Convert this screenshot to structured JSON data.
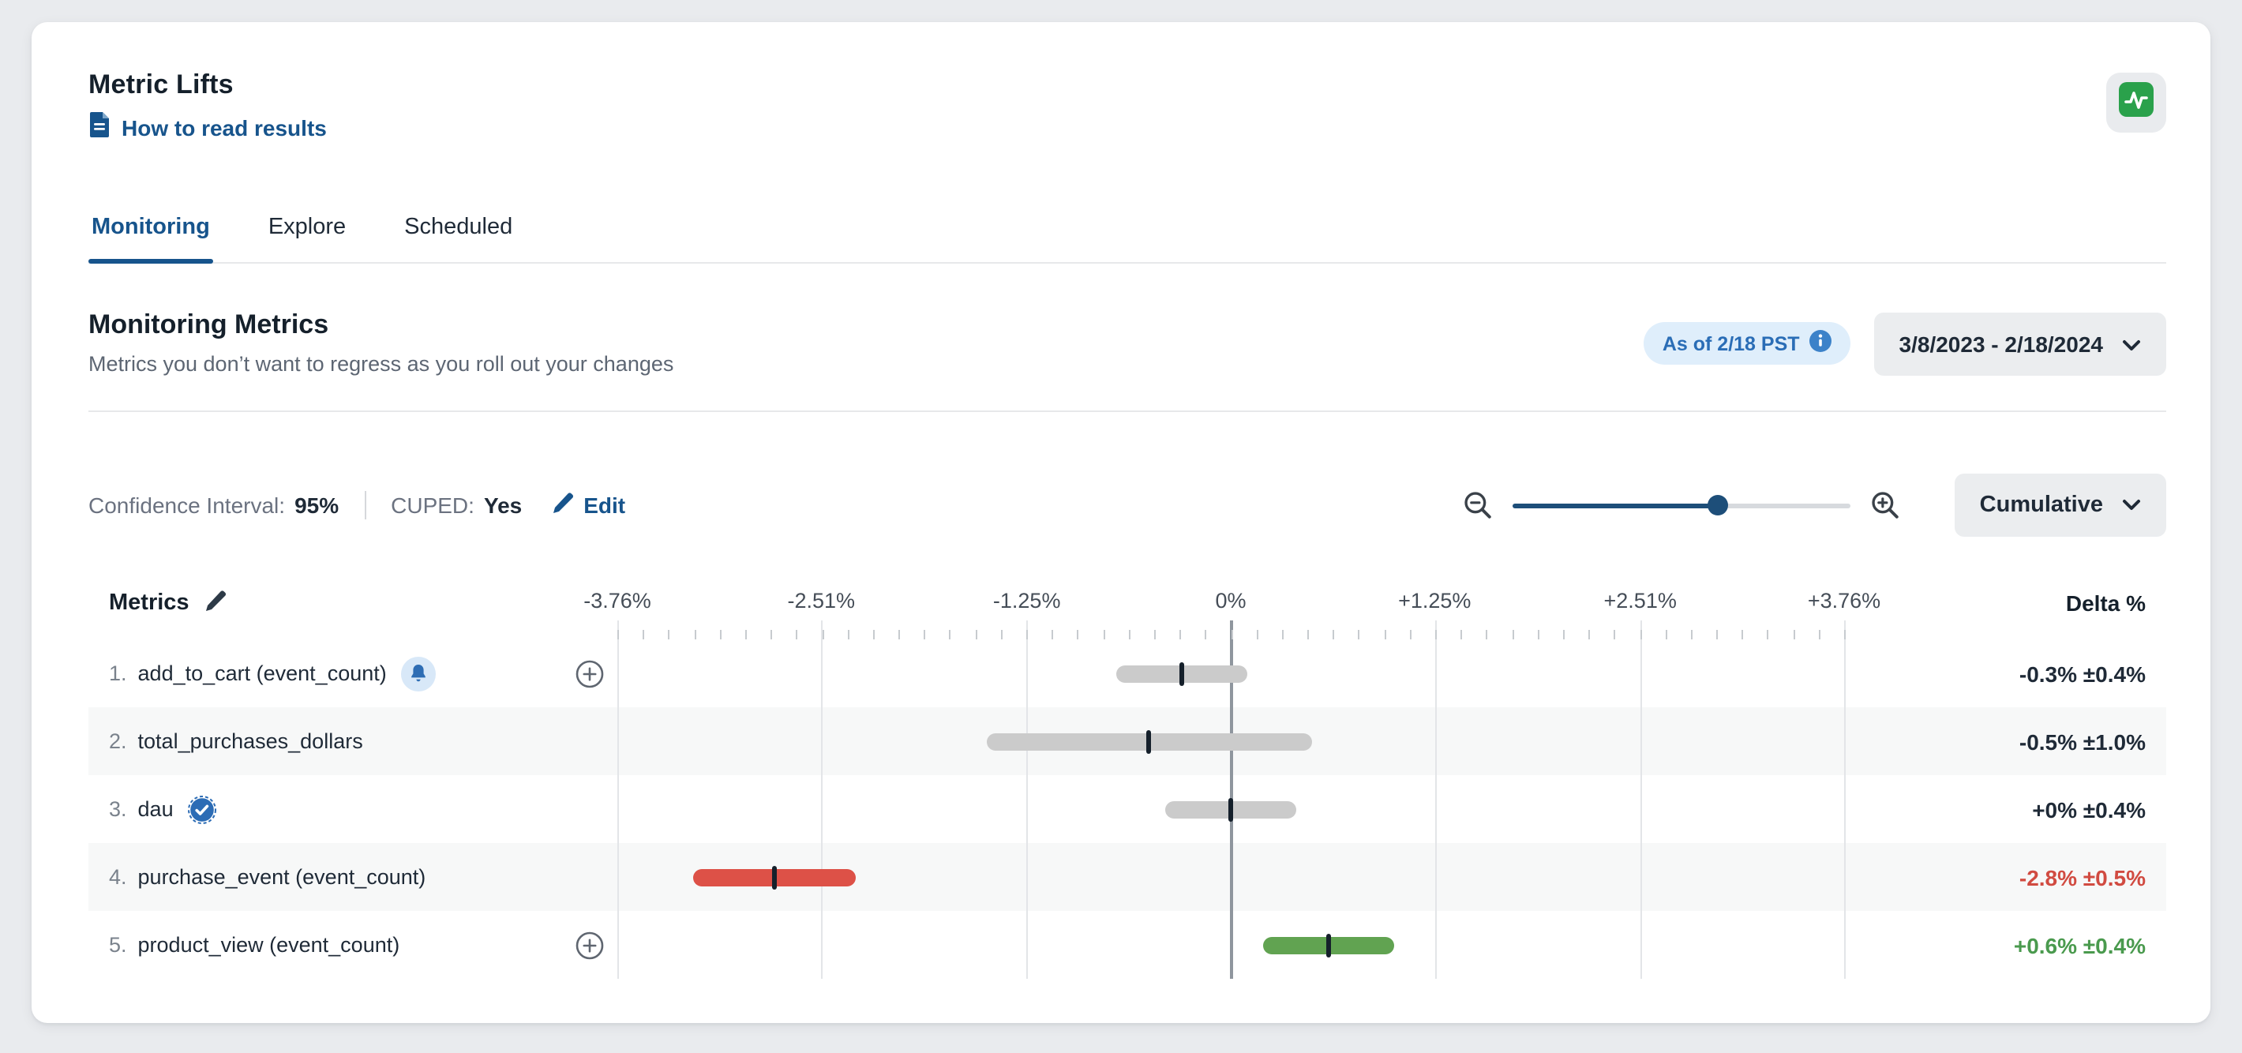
{
  "page": {
    "background": "#e9ebee"
  },
  "header": {
    "title": "Metric Lifts",
    "help_link": "How to read results"
  },
  "tabs": [
    {
      "label": "Monitoring",
      "active": true
    },
    {
      "label": "Explore",
      "active": false
    },
    {
      "label": "Scheduled",
      "active": false
    }
  ],
  "section": {
    "title": "Monitoring Metrics",
    "subtitle": "Metrics you don’t want to regress as you roll out your changes",
    "as_of_badge": "As of 2/18 PST",
    "date_range": "3/8/2023 - 2/18/2024"
  },
  "controls": {
    "confidence_label": "Confidence Interval:",
    "confidence_value": "95%",
    "cuped_label": "CUPED:",
    "cuped_value": "Yes",
    "edit_label": "Edit",
    "view_mode": "Cumulative",
    "zoom_position_pct": 61
  },
  "table": {
    "metrics_header": "Metrics",
    "delta_header": "Delta %"
  },
  "chart_data": {
    "type": "interval",
    "title": "Monitoring Metrics",
    "xlabel": "Delta %",
    "axis_range": [
      -3.76,
      3.76
    ],
    "axis_ticks": [
      {
        "label": "-3.76%",
        "value": -3.76
      },
      {
        "label": "-2.51%",
        "value": -2.51
      },
      {
        "label": "-1.25%",
        "value": -1.25
      },
      {
        "label": "0%",
        "value": 0
      },
      {
        "label": "+1.25%",
        "value": 1.25
      },
      {
        "label": "+2.51%",
        "value": 2.51
      },
      {
        "label": "+3.76%",
        "value": 3.76
      }
    ],
    "rows": [
      {
        "num": "1.",
        "name": "add_to_cart (event_count)",
        "icon": "bell",
        "add_button": true,
        "delta_pct": -0.3,
        "ci_pct": 0.4,
        "delta_text": "-0.3% ±0.4%",
        "status": "neutral"
      },
      {
        "num": "2.",
        "name": "total_purchases_dollars",
        "icon": null,
        "add_button": false,
        "delta_pct": -0.5,
        "ci_pct": 1.0,
        "delta_text": "-0.5% ±1.0%",
        "status": "neutral"
      },
      {
        "num": "3.",
        "name": "dau",
        "icon": "verified",
        "add_button": false,
        "delta_pct": 0,
        "ci_pct": 0.4,
        "delta_text": "+0% ±0.4%",
        "status": "neutral"
      },
      {
        "num": "4.",
        "name": "purchase_event (event_count)",
        "icon": null,
        "add_button": false,
        "delta_pct": -2.8,
        "ci_pct": 0.5,
        "delta_text": "-2.8% ±0.5%",
        "status": "negative"
      },
      {
        "num": "5.",
        "name": "product_view (event_count)",
        "icon": null,
        "add_button": true,
        "delta_pct": 0.6,
        "ci_pct": 0.4,
        "delta_text": "+0.6% ±0.4%",
        "status": "positive"
      }
    ]
  },
  "colors": {
    "accent_blue": "#17548c",
    "badge_blue": "#2a6db6",
    "negative_red": "#d14b41",
    "positive_green": "#4a9a4e",
    "bar_neutral": "#cbcbcb",
    "bar_negative": "#dd5147",
    "bar_positive": "#61a351",
    "zero_line": "#8f969e"
  }
}
